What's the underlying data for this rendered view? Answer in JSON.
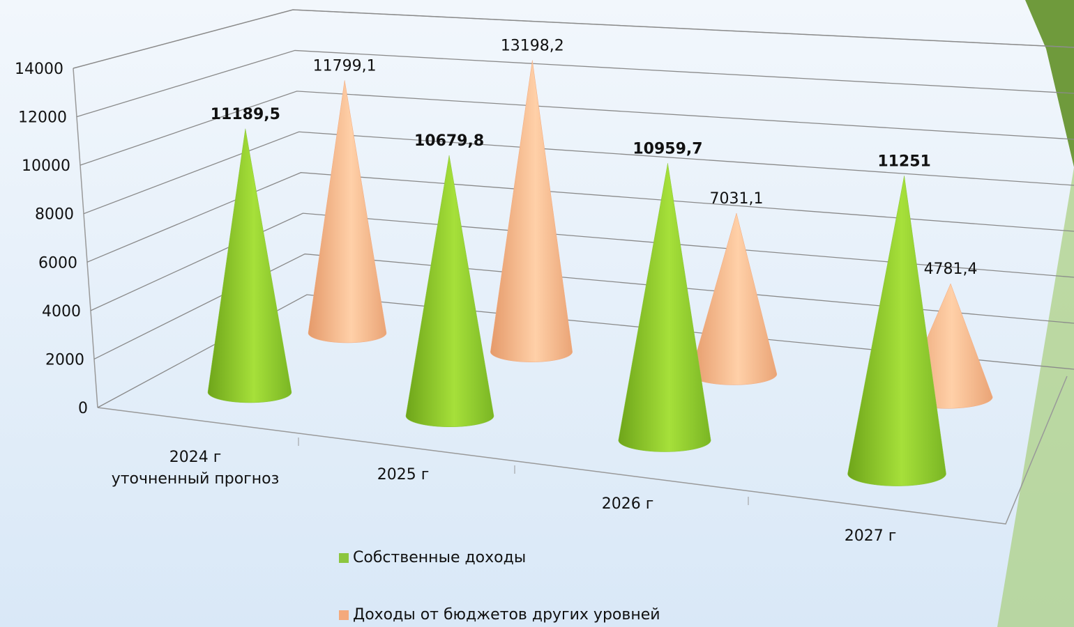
{
  "chart_data": {
    "type": "cone3d",
    "categories": [
      "2024 г\nуточненный прогноз",
      "2025 г",
      "2026 г",
      "2027 г"
    ],
    "series": [
      {
        "name": "Собственные доходы",
        "color": "#8cc63f",
        "label_color": "#8b2323",
        "values": [
          11189.5,
          10679.8,
          10959.7,
          11251
        ],
        "value_labels": [
          "11189,5",
          "10679,8",
          "10959,7",
          "11251"
        ]
      },
      {
        "name": "Доходы от бюджетов других уровней",
        "color": "#f4a97c",
        "label_color": "#111111",
        "values": [
          11799.1,
          13198.2,
          7031.1,
          4781.4
        ],
        "value_labels": [
          "11799,1",
          "13198,2",
          "7031,1",
          "4781,4"
        ]
      }
    ],
    "ylim": [
      0,
      14000
    ],
    "yticks": [
      0,
      2000,
      4000,
      6000,
      8000,
      10000,
      12000,
      14000
    ],
    "grid": true
  }
}
